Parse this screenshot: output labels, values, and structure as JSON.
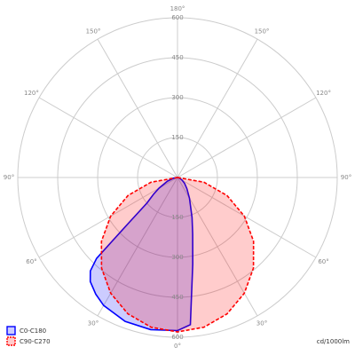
{
  "chart_data": {
    "type": "polar",
    "rlim": [
      0,
      600
    ],
    "rticks": [
      150,
      300,
      450,
      600
    ],
    "angle_ticks": [
      {
        "value": 0,
        "label": "0°"
      },
      {
        "value": 30,
        "label": "30°"
      },
      {
        "value": 60,
        "label": "60°"
      },
      {
        "value": 90,
        "label": "90°"
      },
      {
        "value": 120,
        "label": "120°"
      },
      {
        "value": 150,
        "label": "150°"
      },
      {
        "value": 180,
        "label": "180°"
      }
    ],
    "unit": "cd/1000lm",
    "series": [
      {
        "name": "C0-C180",
        "color": "#0000ff",
        "dashed": false,
        "x": [
          -90,
          -80,
          -70,
          -60,
          -50,
          -40,
          -30,
          -20,
          -15,
          -10,
          -5,
          0,
          10,
          20,
          30,
          35,
          40,
          43,
          45,
          47,
          50,
          55,
          60,
          70,
          80,
          90
        ],
        "values": [
          0,
          5,
          10,
          20,
          35,
          55,
          90,
          160,
          220,
          330,
          555,
          575,
          580,
          575,
          555,
          535,
          510,
          480,
          430,
          250,
          150,
          110,
          80,
          40,
          15,
          0
        ]
      },
      {
        "name": "C90-C270",
        "color": "#ff0000",
        "dashed": true,
        "x": [
          -90,
          -80,
          -70,
          -60,
          -50,
          -40,
          -30,
          -20,
          -10,
          0,
          10,
          20,
          30,
          40,
          50,
          60,
          70,
          80,
          90
        ],
        "values": [
          0,
          101,
          198,
          290,
          373,
          444,
          502,
          545,
          571,
          580,
          571,
          545,
          502,
          444,
          373,
          290,
          198,
          101,
          0
        ]
      }
    ]
  }
}
